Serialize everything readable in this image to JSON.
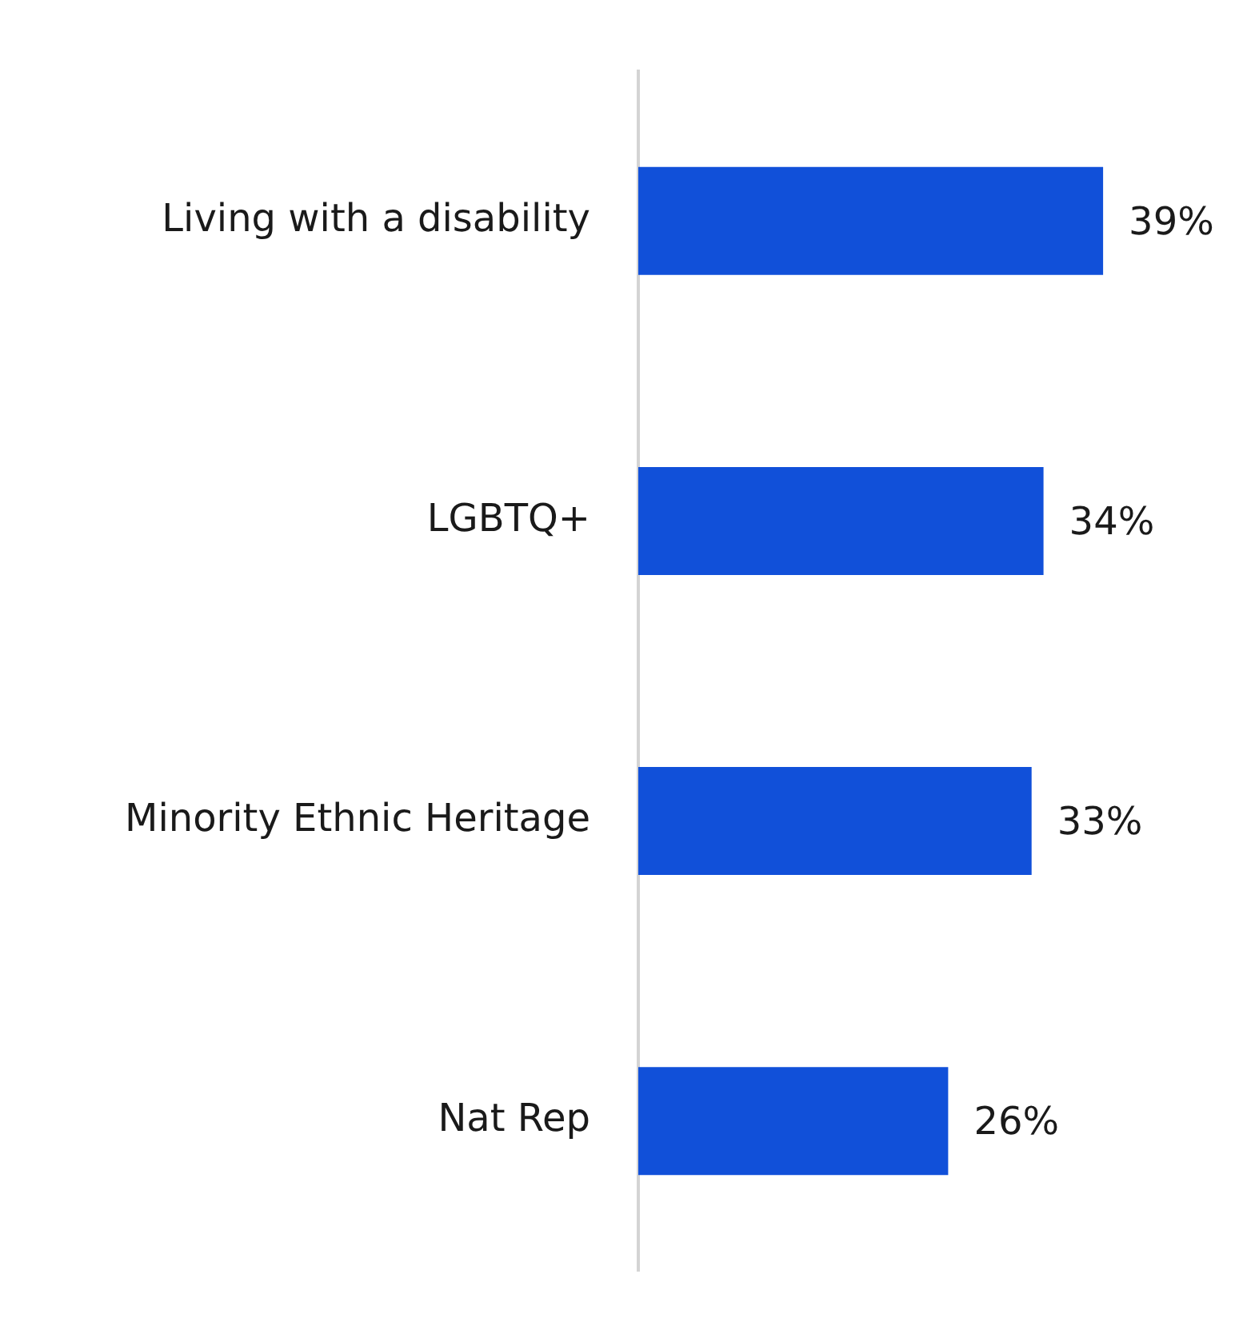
{
  "chart_data": {
    "type": "bar",
    "orientation": "horizontal",
    "categories": [
      "Living with a disability",
      "LGBTQ+",
      "Minority Ethnic Heritage",
      "Nat Rep"
    ],
    "values": [
      39,
      34,
      33,
      26
    ],
    "color": "#1150d9",
    "value_labels": [
      "39%",
      "34%",
      "33%",
      "26%"
    ],
    "tick_labels": "y",
    "legend": false
  }
}
